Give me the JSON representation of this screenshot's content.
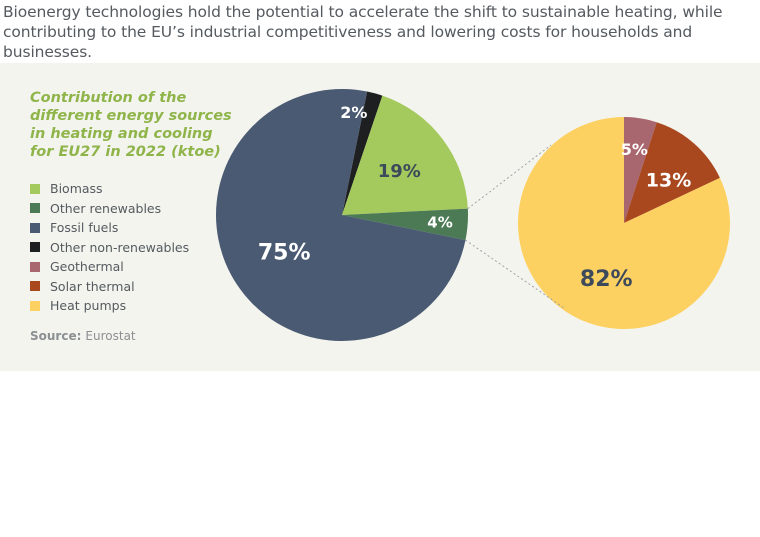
{
  "intro_text": "Bioenergy technologies hold the potential to accelerate the shift to sustainable heating, while contributing to the EU’s industrial competitiveness and lowering costs for households and businesses.",
  "chart_data": {
    "type": "pie",
    "title": "Contribution of the different energy sources in heating and cooling for EU27 in 2022 (ktoe)",
    "source_label": "Source:",
    "source_value": "Eurostat",
    "legend": [
      {
        "name": "Biomass",
        "color": "#a4c95c"
      },
      {
        "name": "Other renewables",
        "color": "#4b7a55"
      },
      {
        "name": "Fossil fuels",
        "color": "#4a5a72"
      },
      {
        "name": "Other non-renewables",
        "color": "#1e1f21"
      },
      {
        "name": "Geothermal",
        "color": "#a8666f"
      },
      {
        "name": "Solar thermal",
        "color": "#a9481f"
      },
      {
        "name": "Heat pumps",
        "color": "#fdd161"
      }
    ],
    "main_pie": {
      "slices": [
        {
          "name": "Other non-renewables",
          "value": 2,
          "label": "2%",
          "color": "#1e1f21"
        },
        {
          "name": "Biomass",
          "value": 19,
          "label": "19%",
          "color": "#a4c95c"
        },
        {
          "name": "Other renewables",
          "value": 4,
          "label": "4%",
          "color": "#4b7a55"
        },
        {
          "name": "Fossil fuels",
          "value": 75,
          "label": "75%",
          "color": "#4a5a72"
        }
      ]
    },
    "detail_pie": {
      "breakdown_of": "Other renewables",
      "slices": [
        {
          "name": "Geothermal",
          "value": 5,
          "label": "5%",
          "color": "#a8666f"
        },
        {
          "name": "Solar thermal",
          "value": 13,
          "label": "13%",
          "color": "#a9481f"
        },
        {
          "name": "Heat pumps",
          "value": 82,
          "label": "82%",
          "color": "#fdd161"
        }
      ]
    }
  }
}
